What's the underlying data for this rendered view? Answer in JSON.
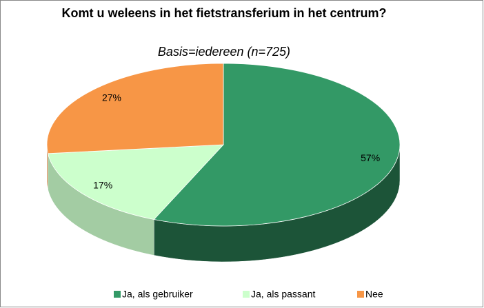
{
  "chart_data": {
    "type": "pie",
    "title": "Komt u weleens in het fietstransferium in het centrum?",
    "subtitle": "Basis=iedereen (n=725)",
    "categories": [
      "Ja, als gebruiker",
      "Ja, als passant",
      "Nee"
    ],
    "values": [
      57,
      17,
      27
    ],
    "value_labels": [
      "57%",
      "17%",
      "27%"
    ],
    "colors": [
      "#339966",
      "#ccffcc",
      "#f79646"
    ],
    "legend": "bottom"
  }
}
